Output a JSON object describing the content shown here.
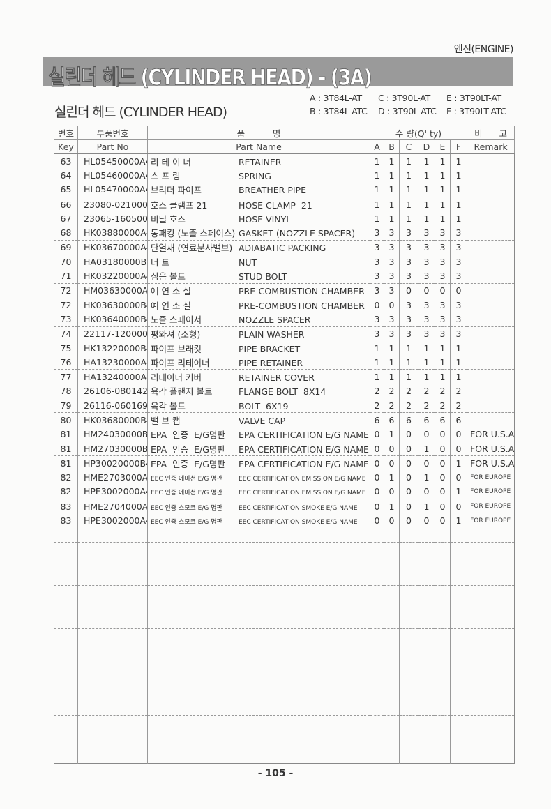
{
  "section": "엔진(ENGINE)",
  "banner_title": "실린더 헤드  (CYLINDER HEAD) - (3A)",
  "subtitle": "실린더 헤드 (CYLINDER HEAD)",
  "models": [
    [
      "A : 3T84L-AT",
      "C : 3T90L-AT",
      "E : 3T90LT-AT"
    ],
    [
      "B : 3T84L-ATC",
      "D : 3T90L-ATC",
      "F : 3T90LT-ATC"
    ]
  ],
  "headers": {
    "key_kr": "번호",
    "key_en": "Key",
    "partno_kr": "부품번호",
    "partno_en": "Part No",
    "name_kr": "품          명",
    "name_en": "Part Name",
    "qty": "수  량(Q' ty)",
    "qty_cols": [
      "A",
      "B",
      "C",
      "D",
      "E",
      "F"
    ],
    "remark_kr": "비      고",
    "remark_en": "Remark"
  },
  "rows": [
    {
      "key": "63",
      "part_no": "HL05450000A4",
      "name_kr": "리 테 이 너",
      "name_en": "RETAINER",
      "qty": [
        "1",
        "1",
        "1",
        "1",
        "1",
        "1"
      ],
      "remark": ""
    },
    {
      "key": "64",
      "part_no": "HL05460000A4",
      "name_kr": "스 프 링",
      "name_en": "SPRING",
      "qty": [
        "1",
        "1",
        "1",
        "1",
        "1",
        "1"
      ],
      "remark": ""
    },
    {
      "key": "65",
      "part_no": "HL05470000A4",
      "name_kr": "브리더 파이프",
      "name_en": "BREATHER PIPE",
      "qty": [
        "1",
        "1",
        "1",
        "1",
        "1",
        "1"
      ],
      "remark": ""
    },
    {
      "key": "66",
      "part_no": "23080-021000",
      "name_kr": "호스 클램프 21",
      "name_en": "HOSE CLAMP  21",
      "qty": [
        "1",
        "1",
        "1",
        "1",
        "1",
        "1"
      ],
      "remark": ""
    },
    {
      "key": "67",
      "part_no": "23065-160500",
      "name_kr": "비닐 호스",
      "name_en": "HOSE VINYL",
      "qty": [
        "1",
        "1",
        "1",
        "1",
        "1",
        "1"
      ],
      "remark": ""
    },
    {
      "key": "68",
      "part_no": "HK03880000A4",
      "name_kr": "동패킹 (노즐 스페이스)",
      "name_en": "GASKET (NOZZLE SPACER)",
      "qty": [
        "3",
        "3",
        "3",
        "3",
        "3",
        "3"
      ],
      "remark": ""
    },
    {
      "key": "69",
      "part_no": "HK03670000A4",
      "name_kr": "단열재 (연료분사밸브)",
      "name_en": "ADIABATIC PACKING",
      "qty": [
        "3",
        "3",
        "3",
        "3",
        "3",
        "3"
      ],
      "remark": ""
    },
    {
      "key": "70",
      "part_no": "HA03180000B3",
      "name_kr": "너 트",
      "name_en": "NUT",
      "qty": [
        "3",
        "3",
        "3",
        "3",
        "3",
        "3"
      ],
      "remark": ""
    },
    {
      "key": "71",
      "part_no": "HK03220000A4",
      "name_kr": "심음 볼트",
      "name_en": "STUD BOLT",
      "qty": [
        "3",
        "3",
        "3",
        "3",
        "3",
        "3"
      ],
      "remark": ""
    },
    {
      "key": "72",
      "part_no": "HM03630000A4",
      "name_kr": "예 연 소 실",
      "name_en": "PRE-COMBUSTION CHAMBER",
      "qty": [
        "3",
        "3",
        "0",
        "0",
        "0",
        "0"
      ],
      "remark": ""
    },
    {
      "key": "72",
      "part_no": "HK03630000B4",
      "name_kr": "예 연 소 실",
      "name_en": "PRE-COMBUSTION CHAMBER",
      "qty": [
        "0",
        "0",
        "3",
        "3",
        "3",
        "3"
      ],
      "remark": ""
    },
    {
      "key": "73",
      "part_no": "HK03640000B4",
      "name_kr": "노즐 스페이서",
      "name_en": "NOZZLE SPACER",
      "qty": [
        "3",
        "3",
        "3",
        "3",
        "3",
        "3"
      ],
      "remark": ""
    },
    {
      "key": "74",
      "part_no": "22117-120000",
      "name_kr": "평와셔 (소형)",
      "name_en": "PLAIN WASHER",
      "qty": [
        "3",
        "3",
        "3",
        "3",
        "3",
        "3"
      ],
      "remark": ""
    },
    {
      "key": "75",
      "part_no": "HK13220000B4",
      "name_kr": "파이프 브래킷",
      "name_en": "PIPE BRACKET",
      "qty": [
        "1",
        "1",
        "1",
        "1",
        "1",
        "1"
      ],
      "remark": ""
    },
    {
      "key": "76",
      "part_no": "HA13230000A4",
      "name_kr": "파이프 리테이너",
      "name_en": "PIPE RETAINER",
      "qty": [
        "1",
        "1",
        "1",
        "1",
        "1",
        "1"
      ],
      "remark": ""
    },
    {
      "key": "77",
      "part_no": "HA13240000A4",
      "name_kr": "리테이너 커버",
      "name_en": "RETAINER COVER",
      "qty": [
        "1",
        "1",
        "1",
        "1",
        "1",
        "1"
      ],
      "remark": ""
    },
    {
      "key": "78",
      "part_no": "26106-080142",
      "name_kr": "육각 플랜지 볼트",
      "name_en": "FLANGE BOLT  8X14",
      "qty": [
        "2",
        "2",
        "2",
        "2",
        "2",
        "2"
      ],
      "remark": ""
    },
    {
      "key": "79",
      "part_no": "26116-060169",
      "name_kr": "육각 볼트",
      "name_en": "BOLT  6X19",
      "qty": [
        "2",
        "2",
        "2",
        "2",
        "2",
        "2"
      ],
      "remark": ""
    },
    {
      "key": "80",
      "part_no": "HK03680000B4",
      "name_kr": "밸 브 캡",
      "name_en": "VALVE CAP",
      "qty": [
        "6",
        "6",
        "6",
        "6",
        "6",
        "6"
      ],
      "remark": ""
    },
    {
      "key": "81",
      "part_no": "HM24030000B4",
      "name_kr": "EPA  인증  E/G명판",
      "name_en": "EPA CERTIFICATION E/G NAME",
      "qty": [
        "0",
        "1",
        "0",
        "0",
        "0",
        "0"
      ],
      "remark": "FOR U.S.A"
    },
    {
      "key": "81",
      "part_no": "HM27030000B4",
      "name_kr": "EPA  인증  E/G명판",
      "name_en": "EPA CERTIFICATION E/G NAME",
      "qty": [
        "0",
        "0",
        "0",
        "1",
        "0",
        "0"
      ],
      "remark": "FOR U.S.A"
    },
    {
      "key": "81",
      "part_no": "HP30020000B4",
      "name_kr": "EPA  인증  E/G명판",
      "name_en": "EPA CERTIFICATION E/G NAME",
      "qty": [
        "0",
        "0",
        "0",
        "0",
        "0",
        "1"
      ],
      "remark": "FOR U.S.A"
    },
    {
      "key": "82",
      "part_no": "HME2703000A4",
      "name_kr": "EEC 인증 에미션 E/G 명판",
      "name_en": "EEC CERTIFICATION EMISSION E/G NAME",
      "qty": [
        "0",
        "1",
        "0",
        "1",
        "0",
        "0"
      ],
      "remark": "FOR EUROPE",
      "small": true
    },
    {
      "key": "82",
      "part_no": "HPE3002000A4",
      "name_kr": "EEC 인증 에미션 E/G 명판",
      "name_en": "EEC CERTIFICATION EMISSION E/G NAME",
      "qty": [
        "0",
        "0",
        "0",
        "0",
        "0",
        "1"
      ],
      "remark": "FOR EUROPE",
      "small": true
    },
    {
      "key": "83",
      "part_no": "HME2704000A4",
      "name_kr": "EEC 인증 스모크 E/G 명판",
      "name_en": "EEC CERTIFICATION SMOKE E/G NAME",
      "qty": [
        "0",
        "1",
        "0",
        "1",
        "0",
        "0"
      ],
      "remark": "FOR EUROPE",
      "small": true
    },
    {
      "key": "83",
      "part_no": "HPE3002000A4",
      "name_kr": "EEC 인증 스모크 E/G 명판",
      "name_en": "EEC CERTIFICATION SMOKE E/G NAME",
      "qty": [
        "0",
        "0",
        "0",
        "0",
        "0",
        "1"
      ],
      "remark": "FOR EUROPE",
      "small": true
    }
  ],
  "page_number": "- 105 -"
}
